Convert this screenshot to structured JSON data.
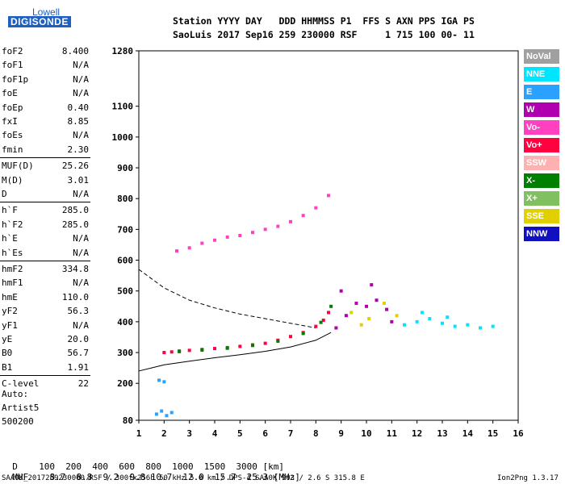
{
  "logo": {
    "line1": "Lowell",
    "line2": "DIGISONDE"
  },
  "header": {
    "line1": "Station YYYY DAY   DDD HHMMSS P1  FFS S AXN PPS IGA PS",
    "line2": "SaoLuis 2017 Sep16 259 230000 RSF     1 715 100 00- 11"
  },
  "params": [
    {
      "label": "foF2",
      "value": "8.400"
    },
    {
      "label": "foF1",
      "value": "N/A"
    },
    {
      "label": "foF1p",
      "value": "N/A"
    },
    {
      "label": "foE",
      "value": "N/A"
    },
    {
      "label": "foEp",
      "value": "0.40"
    },
    {
      "label": "fxI",
      "value": "8.85"
    },
    {
      "label": "foEs",
      "value": "N/A"
    },
    {
      "label": "fmin",
      "value": "2.30"
    },
    {
      "label": "MUF(D)",
      "value": "25.26"
    },
    {
      "label": "M(D)",
      "value": "3.01"
    },
    {
      "label": "D",
      "value": "N/A"
    },
    {
      "label": "h`F",
      "value": "285.0"
    },
    {
      "label": "h`F2",
      "value": "285.0"
    },
    {
      "label": "h`E",
      "value": "N/A"
    },
    {
      "label": "h`Es",
      "value": "N/A"
    },
    {
      "label": "hmF2",
      "value": "334.8"
    },
    {
      "label": "hmF1",
      "value": "N/A"
    },
    {
      "label": "hmE",
      "value": "110.0"
    },
    {
      "label": "yF2",
      "value": "56.3"
    },
    {
      "label": "yF1",
      "value": "N/A"
    },
    {
      "label": "yE",
      "value": "20.0"
    },
    {
      "label": "B0",
      "value": "56.7"
    },
    {
      "label": "B1",
      "value": "1.91"
    },
    {
      "label": "C-level",
      "value": "22"
    }
  ],
  "auto": {
    "line1": "Auto:",
    "line2": "Artist5",
    "line3": "500200"
  },
  "legend": [
    {
      "label": "NoVal",
      "color": "#a0a0a0"
    },
    {
      "label": "NNE",
      "color": "#00e5ff"
    },
    {
      "label": "E",
      "color": "#2aa0ff"
    },
    {
      "label": "W",
      "color": "#b000b0"
    },
    {
      "label": "Vo-",
      "color": "#ff40c0"
    },
    {
      "label": "Vo+",
      "color": "#ff0040"
    },
    {
      "label": "SSW",
      "color": "#ffb0b0"
    },
    {
      "label": "X-",
      "color": "#008000"
    },
    {
      "label": "X+",
      "color": "#80c060"
    },
    {
      "label": "SSE",
      "color": "#e0d000"
    },
    {
      "label": "NNW",
      "color": "#1010c0"
    }
  ],
  "muf_table": {
    "d_label": "D",
    "d_values": [
      "100",
      "200",
      "400",
      "600",
      "800",
      "1000",
      "1500",
      "3000"
    ],
    "d_unit": "[km]",
    "muf_label": "MUF",
    "muf_values": [
      "8.7",
      "8.8",
      "9.2",
      "9.8",
      "10.7",
      "12.0",
      "15.7",
      "25.3"
    ],
    "muf_unit": "[MHz]"
  },
  "footer": {
    "left": "SAA0K_2017259230000.RSF / 300fx256h 50 kHz 5.0 km / DPS-4 SAA0K 903 / 2.6 S 315.8 E",
    "right": "Ion2Png 1.3.17"
  },
  "chart_data": {
    "type": "scatter",
    "xlim": [
      1,
      16
    ],
    "ylim": [
      80,
      1280
    ],
    "x_ticks": [
      1,
      2,
      3,
      4,
      5,
      6,
      7,
      8,
      9,
      10,
      11,
      12,
      13,
      14,
      15,
      16
    ],
    "y_ticks": [
      80,
      200,
      300,
      400,
      500,
      600,
      700,
      800,
      900,
      1000,
      1100,
      1280
    ],
    "grid": false,
    "legend_position": "right",
    "clusters": [
      {
        "name": "F-trace",
        "color": "#ff0040",
        "points": [
          [
            2.0,
            300
          ],
          [
            2.3,
            302
          ],
          [
            2.6,
            305
          ],
          [
            3.0,
            307
          ],
          [
            3.5,
            310
          ],
          [
            4.0,
            313
          ],
          [
            4.5,
            316
          ],
          [
            5.0,
            320
          ],
          [
            5.5,
            325
          ],
          [
            6.0,
            330
          ],
          [
            6.5,
            340
          ],
          [
            7.0,
            352
          ],
          [
            7.5,
            365
          ],
          [
            8.0,
            385
          ],
          [
            8.3,
            405
          ],
          [
            8.5,
            430
          ]
        ]
      },
      {
        "name": "F-trace-green",
        "color": "#008000",
        "points": [
          [
            2.6,
            303
          ],
          [
            3.5,
            308
          ],
          [
            4.5,
            314
          ],
          [
            5.5,
            323
          ],
          [
            6.5,
            337
          ],
          [
            7.5,
            362
          ],
          [
            8.2,
            398
          ],
          [
            8.6,
            450
          ]
        ]
      },
      {
        "name": "second-hop",
        "color": "#ff40c0",
        "points": [
          [
            2.5,
            630
          ],
          [
            3.0,
            640
          ],
          [
            3.5,
            655
          ],
          [
            4.0,
            665
          ],
          [
            4.5,
            675
          ],
          [
            5.0,
            680
          ],
          [
            5.5,
            690
          ],
          [
            6.0,
            700
          ],
          [
            6.5,
            710
          ],
          [
            7.0,
            725
          ],
          [
            7.5,
            745
          ],
          [
            8.0,
            770
          ],
          [
            8.5,
            810
          ]
        ]
      },
      {
        "name": "scatter-F",
        "color": "#b000b0",
        "points": [
          [
            8.8,
            380
          ],
          [
            9.2,
            420
          ],
          [
            9.6,
            460
          ],
          [
            10.0,
            450
          ],
          [
            10.4,
            470
          ],
          [
            10.8,
            440
          ],
          [
            11.0,
            400
          ],
          [
            9.0,
            500
          ],
          [
            10.2,
            520
          ]
        ]
      },
      {
        "name": "scatter-NNE",
        "color": "#00e5ff",
        "points": [
          [
            11.5,
            390
          ],
          [
            12.0,
            400
          ],
          [
            12.5,
            410
          ],
          [
            13.0,
            395
          ],
          [
            13.5,
            385
          ],
          [
            14.0,
            390
          ],
          [
            14.5,
            380
          ],
          [
            15.0,
            385
          ],
          [
            12.2,
            430
          ],
          [
            13.2,
            415
          ]
        ]
      },
      {
        "name": "scatter-SSE",
        "color": "#e0d000",
        "points": [
          [
            9.4,
            430
          ],
          [
            10.1,
            410
          ],
          [
            10.7,
            460
          ],
          [
            11.2,
            420
          ],
          [
            9.8,
            390
          ]
        ]
      },
      {
        "name": "low-E",
        "color": "#2aa0ff",
        "points": [
          [
            1.7,
            100
          ],
          [
            1.9,
            110
          ],
          [
            2.1,
            95
          ],
          [
            2.3,
            105
          ],
          [
            1.8,
            210
          ],
          [
            2.0,
            205
          ]
        ]
      }
    ],
    "curves": [
      {
        "name": "profile-solid",
        "style": "solid",
        "points": [
          [
            1,
            240
          ],
          [
            1.5,
            250
          ],
          [
            2,
            260
          ],
          [
            3,
            272
          ],
          [
            4,
            283
          ],
          [
            5,
            293
          ],
          [
            6,
            304
          ],
          [
            7,
            318
          ],
          [
            8,
            340
          ],
          [
            8.6,
            365
          ]
        ]
      },
      {
        "name": "profile-dashed",
        "style": "dashed",
        "points": [
          [
            1,
            570
          ],
          [
            1.5,
            540
          ],
          [
            2,
            510
          ],
          [
            3,
            470
          ],
          [
            4,
            445
          ],
          [
            5,
            425
          ],
          [
            6,
            410
          ],
          [
            7,
            395
          ],
          [
            8,
            380
          ]
        ]
      }
    ]
  }
}
